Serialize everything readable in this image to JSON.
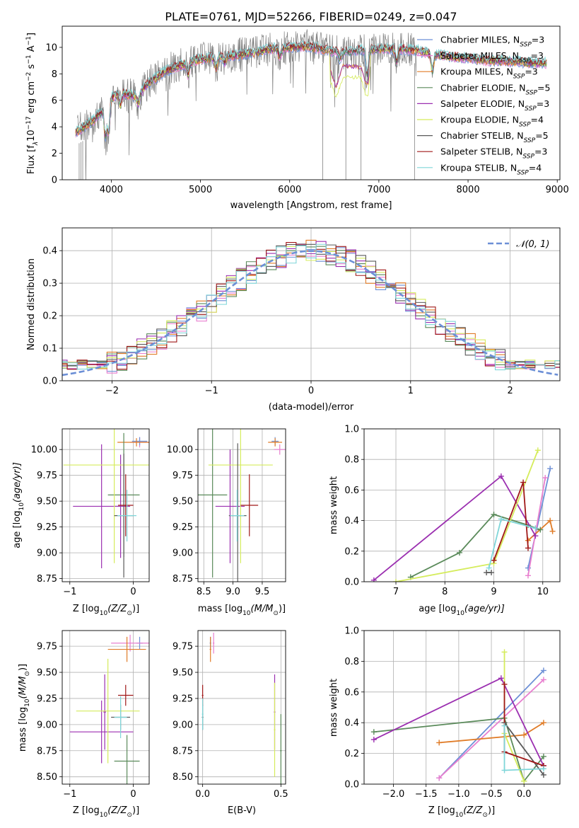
{
  "figure": {
    "title": "PLATE=0761, MJD=52266, FIBERID=0249, z=0.047"
  },
  "colors": [
    "#6c8fd6",
    "#e87fcf",
    "#e07c28",
    "#5a8a5a",
    "#9b2fb0",
    "#d5ec5c",
    "#5a5a5a",
    "#a01818",
    "#7fd6d9"
  ],
  "chart_data": [
    {
      "id": "spectrum",
      "type": "line",
      "xlabel": "wavelength [Angstrom, rest frame]",
      "ylabel_main": "Flux [f",
      "ylabel_sub": "λ",
      "ylabel_rest": "10",
      "ylabel_exp1": "−17",
      "ylabel_mid": " erg cm",
      "ylabel_exp2": "−2",
      "ylabel_mid2": " s",
      "ylabel_exp3": "−1",
      "ylabel_mid3": " A",
      "ylabel_exp4": "−1",
      "ylabel_end": "]",
      "xlim": [
        3450,
        9030
      ],
      "ylim": [
        0,
        11.6
      ],
      "xticks": [
        4000,
        5000,
        6000,
        7000,
        8000,
        9000
      ],
      "yticks": [
        0,
        2,
        4,
        6,
        8,
        10
      ],
      "grid": false,
      "legend_position": "upper-right",
      "legend": [
        {
          "label": "Chabrier MILES, N",
          "sub": "SSP",
          "val": "=3",
          "color": "#6c8fd6"
        },
        {
          "label": "Salpeter MILES, N",
          "sub": "SSP",
          "val": "=3",
          "color": "#e87fcf"
        },
        {
          "label": "Kroupa MILES, N",
          "sub": "SSP",
          "val": "=3",
          "color": "#e07c28"
        },
        {
          "label": "Chabrier ELODIE, N",
          "sub": "SSP",
          "val": "=5",
          "color": "#5a8a5a"
        },
        {
          "label": "Salpeter ELODIE, N",
          "sub": "SSP",
          "val": "=3",
          "color": "#9b2fb0"
        },
        {
          "label": "Kroupa ELODIE, N",
          "sub": "SSP",
          "val": "=4",
          "color": "#d5ec5c"
        },
        {
          "label": "Chabrier STELIB, N",
          "sub": "SSP",
          "val": "=5",
          "color": "#5a5a5a"
        },
        {
          "label": "Salpeter STELIB, N",
          "sub": "SSP",
          "val": "=3",
          "color": "#a01818"
        },
        {
          "label": "Kroupa STELIB, N",
          "sub": "SSP",
          "val": "=4",
          "color": "#7fd6d9"
        }
      ],
      "continuum": [
        [
          3600,
          3.6
        ],
        [
          3700,
          4.0
        ],
        [
          3800,
          4.5
        ],
        [
          3900,
          5.2
        ],
        [
          4000,
          6.2
        ],
        [
          4100,
          6.6
        ],
        [
          4200,
          6.4
        ],
        [
          4300,
          6.3
        ],
        [
          4400,
          7.2
        ],
        [
          4600,
          8.2
        ],
        [
          4800,
          8.7
        ],
        [
          5000,
          9.1
        ],
        [
          5200,
          9.3
        ],
        [
          5400,
          9.4
        ],
        [
          5600,
          9.6
        ],
        [
          5800,
          9.9
        ],
        [
          6000,
          10.0
        ],
        [
          6200,
          10.1
        ],
        [
          6400,
          9.8
        ],
        [
          6600,
          9.6
        ],
        [
          6800,
          9.8
        ],
        [
          7000,
          9.9
        ],
        [
          7200,
          9.9
        ],
        [
          7400,
          9.8
        ],
        [
          7600,
          9.5
        ],
        [
          7800,
          9.3
        ],
        [
          8000,
          9.2
        ],
        [
          8200,
          9.0
        ],
        [
          8400,
          9.0
        ],
        [
          8600,
          8.9
        ],
        [
          8800,
          8.8
        ]
      ],
      "absorption": [
        [
          3934,
          3.0
        ],
        [
          3969,
          3.3
        ],
        [
          4102,
          5.5
        ],
        [
          4304,
          5.6
        ],
        [
          4861,
          7.8
        ],
        [
          5175,
          8.3
        ],
        [
          5270,
          8.8
        ],
        [
          5890,
          9.2
        ],
        [
          6563,
          9.0
        ],
        [
          6870,
          7.6
        ],
        [
          7200,
          8.8
        ],
        [
          7600,
          8.0
        ]
      ],
      "noisy_range": [
        3600,
        7420
      ],
      "trough": [
        [
          6450,
          8.4
        ],
        [
          6520,
          7.0
        ],
        [
          6600,
          8.6
        ],
        [
          6800,
          8.5
        ],
        [
          6850,
          7.3
        ],
        [
          6880,
          7.2
        ],
        [
          6900,
          8.6
        ]
      ]
    },
    {
      "id": "residuals",
      "type": "histogram",
      "xlabel": "(data-model)/error",
      "ylabel": "Normed distribution",
      "xlim": [
        -2.5,
        2.5
      ],
      "ylim": [
        0,
        0.47
      ],
      "xticks": [
        -2,
        -1,
        0,
        1,
        2
      ],
      "xtick_labels": [
        "−2",
        "−1",
        "0",
        "1",
        "2"
      ],
      "yticks": [
        0.0,
        0.1,
        0.2,
        0.3,
        0.4
      ],
      "grid": true,
      "legend_position": "upper-right",
      "legend": [
        {
          "label": "𝒩(0, 1)",
          "color": "#6c8fd6"
        }
      ],
      "bin_width": 0.1
    },
    {
      "id": "age-vs-Z",
      "type": "scatter",
      "xlabel": "Z [log",
      "xlabel_sub": "10",
      "xlabel_rest": "(Z/Z",
      "xlabel_sun": "⊙",
      "xlabel_end": ")]",
      "ylabel": "age  [log",
      "ylabel_sub": "10",
      "ylabel_end": "(age/yr)]",
      "xlim": [
        -1.12,
        0.25
      ],
      "ylim": [
        8.72,
        10.2
      ],
      "xticks": [
        -1,
        0
      ],
      "xtick_labels": [
        "−1",
        "0"
      ],
      "yticks": [
        8.75,
        9.0,
        9.25,
        9.5,
        9.75,
        10.0
      ],
      "grid": true,
      "points": [
        {
          "c": 1,
          "x": 0.1,
          "y": 10.07,
          "ex": 0.15,
          "ey": 0.05
        },
        {
          "c": 0,
          "x": 0.1,
          "y": 10.08,
          "ex": 0.12,
          "ey": 0.04
        },
        {
          "c": 2,
          "x": 0.05,
          "y": 10.07,
          "ex": 0.3,
          "ey": 0.04
        },
        {
          "c": 3,
          "x": -0.15,
          "y": 9.56,
          "ex": 0.25,
          "ey": 0.6
        },
        {
          "c": 4,
          "x": -0.2,
          "y": 9.45,
          "ex": 0.1,
          "ey": 0.5
        },
        {
          "c": 4,
          "x": -0.5,
          "y": 9.45,
          "ex": 0.45,
          "ey": 0.6
        },
        {
          "c": 5,
          "x": -0.3,
          "y": 9.85,
          "ex": 0.8,
          "ey": 0.95
        },
        {
          "c": 6,
          "x": -0.15,
          "y": 9.36,
          "ex": 0.15,
          "ey": 0.6
        },
        {
          "c": 7,
          "x": -0.12,
          "y": 9.46,
          "ex": 0.12,
          "ey": 0.3
        },
        {
          "c": 8,
          "x": -0.1,
          "y": 9.36,
          "ex": 0.15,
          "ey": 0.25
        }
      ]
    },
    {
      "id": "age-vs-mass",
      "type": "scatter",
      "xlabel": "mass [log",
      "xlabel_sub": "10",
      "xlabel_rest": "(M/M",
      "xlabel_sun": "⊙",
      "xlabel_end": ")]",
      "xlim": [
        8.4,
        9.9
      ],
      "ylim": [
        8.72,
        10.2
      ],
      "xticks": [
        8.5,
        9.0,
        9.5
      ],
      "xtick_labels": [
        "8.5",
        "9.0",
        "9.5"
      ],
      "yticks": [
        8.75,
        9.0,
        9.25,
        9.5,
        9.75,
        10.0
      ],
      "grid": true,
      "points": [
        {
          "c": 0,
          "x": 9.72,
          "y": 10.08,
          "ex": 0.06,
          "ey": 0.04
        },
        {
          "c": 1,
          "x": 9.8,
          "y": 10.0,
          "ex": 0.1,
          "ey": 0.05
        },
        {
          "c": 2,
          "x": 9.72,
          "y": 10.07,
          "ex": 0.12,
          "ey": 0.04
        },
        {
          "c": 3,
          "x": 8.65,
          "y": 9.56,
          "ex": 0.25,
          "ey": 0.8
        },
        {
          "c": 4,
          "x": 8.95,
          "y": 9.45,
          "ex": 0.25,
          "ey": 0.55
        },
        {
          "c": 5,
          "x": 9.13,
          "y": 9.85,
          "ex": 0.55,
          "ey": 0.95
        },
        {
          "c": 6,
          "x": 9.08,
          "y": 9.36,
          "ex": 0.15,
          "ey": 0.7
        },
        {
          "c": 7,
          "x": 9.28,
          "y": 9.46,
          "ex": 0.15,
          "ey": 0.3
        },
        {
          "c": 8,
          "x": 9.07,
          "y": 9.36,
          "ex": 0.12,
          "ey": 0.25
        }
      ]
    },
    {
      "id": "weight-vs-age",
      "type": "line",
      "xlabel": "age  [log",
      "xlabel_sub": "10",
      "xlabel_end": "(age/yr)]",
      "ylabel": "mass weight",
      "xlim": [
        6.35,
        10.35
      ],
      "ylim": [
        0,
        1.0
      ],
      "xticks": [
        7,
        8,
        9,
        10
      ],
      "yticks": [
        0.0,
        0.2,
        0.4,
        0.6,
        0.8,
        1.0
      ],
      "grid": true,
      "series": [
        {
          "c": 0,
          "x": [
            9.7,
            10.15
          ],
          "y": [
            0.09,
            0.74
          ]
        },
        {
          "c": 1,
          "x": [
            9.7,
            10.05
          ],
          "y": [
            0.04,
            0.68
          ]
        },
        {
          "c": 2,
          "x": [
            9.7,
            10.15,
            10.2
          ],
          "y": [
            0.27,
            0.4,
            0.33
          ]
        },
        {
          "c": 3,
          "x": [
            7.3,
            8.3,
            9.0,
            9.7,
            9.95
          ],
          "y": [
            0.03,
            0.19,
            0.44,
            0.37,
            0.34
          ]
        },
        {
          "c": 4,
          "x": [
            6.55,
            9.15,
            9.85
          ],
          "y": [
            0.01,
            0.69,
            0.3
          ]
        },
        {
          "c": 5,
          "x": [
            7.0,
            9.0,
            9.9
          ],
          "y": [
            0.0,
            0.12,
            0.86
          ]
        },
        {
          "c": 6,
          "x": [
            8.85,
            8.95
          ],
          "y": [
            0.06,
            0.06
          ]
        },
        {
          "c": 7,
          "x": [
            9.0,
            9.6,
            9.7
          ],
          "y": [
            0.14,
            0.65,
            0.22
          ]
        },
        {
          "c": 8,
          "x": [
            8.9,
            9.15,
            9.85
          ],
          "y": [
            0.09,
            0.41,
            0.35
          ]
        }
      ]
    },
    {
      "id": "mass-vs-Z",
      "type": "scatter",
      "xlabel": "Z [log",
      "xlabel_sub": "10",
      "xlabel_rest": "(Z/Z",
      "xlabel_sun": "⊙",
      "xlabel_end": ")]",
      "ylabel": "mass [log",
      "ylabel_sub": "10",
      "ylabel_rest": "(M/M",
      "ylabel_sun": "⊙",
      "ylabel_end": ")]",
      "xlim": [
        -1.12,
        0.25
      ],
      "ylim": [
        8.43,
        9.9
      ],
      "xticks": [
        -1,
        0
      ],
      "xtick_labels": [
        "−1",
        "0"
      ],
      "yticks": [
        8.5,
        8.75,
        9.0,
        9.25,
        9.5,
        9.75
      ],
      "grid": true,
      "points": [
        {
          "c": 0,
          "x": 0.1,
          "y": 9.78,
          "ex": 0.05,
          "ey": 0.06
        },
        {
          "c": 1,
          "x": -0.05,
          "y": 9.78,
          "ex": 0.3,
          "ey": 0.08
        },
        {
          "c": 2,
          "x": -0.1,
          "y": 9.72,
          "ex": 0.3,
          "ey": 0.12
        },
        {
          "c": 3,
          "x": -0.1,
          "y": 8.65,
          "ex": 0.2,
          "ey": 0.25
        },
        {
          "c": 4,
          "x": -0.5,
          "y": 8.93,
          "ex": 0.5,
          "ey": 0.3
        },
        {
          "c": 4,
          "x": -0.45,
          "y": 9.12,
          "ex": 0.02,
          "ey": 0.36
        },
        {
          "c": 5,
          "x": -0.4,
          "y": 9.13,
          "ex": 0.5,
          "ey": 0.5
        },
        {
          "c": 6,
          "x": -0.2,
          "y": 9.07,
          "ex": 0.15,
          "ey": 0.12
        },
        {
          "c": 7,
          "x": -0.12,
          "y": 9.28,
          "ex": 0.12,
          "ey": 0.1
        },
        {
          "c": 8,
          "x": -0.2,
          "y": 9.07,
          "ex": 0.1,
          "ey": 0.2
        }
      ]
    },
    {
      "id": "mass-vs-EBV",
      "type": "scatter",
      "xlabel": "E(B-V)",
      "xlim": [
        -0.03,
        0.53
      ],
      "ylim": [
        8.43,
        9.9
      ],
      "xticks": [
        0.0,
        0.5
      ],
      "xtick_labels": [
        "0.0",
        "0.5"
      ],
      "yticks": [
        8.5,
        8.75,
        9.0,
        9.25,
        9.5,
        9.75
      ],
      "grid": true,
      "points": [
        {
          "c": 0,
          "x": 0.05,
          "y": 9.78,
          "ex": 0.005,
          "ey": 0.06
        },
        {
          "c": 1,
          "x": 0.07,
          "y": 9.78,
          "ex": 0.005,
          "ey": 0.1
        },
        {
          "c": 2,
          "x": 0.05,
          "y": 9.72,
          "ex": 0.005,
          "ey": 0.12
        },
        {
          "c": 3,
          "x": 0.5,
          "y": 8.75,
          "ex": 0.005,
          "ey": 0.35
        },
        {
          "c": 4,
          "x": 0.46,
          "y": 9.12,
          "ex": 0.005,
          "ey": 0.36
        },
        {
          "c": 5,
          "x": 0.46,
          "y": 8.95,
          "ex": 0.005,
          "ey": 0.45
        },
        {
          "c": 6,
          "x": 0.0,
          "y": 9.07,
          "ex": 0.005,
          "ey": 0.12
        },
        {
          "c": 7,
          "x": 0.0,
          "y": 9.28,
          "ex": 0.005,
          "ey": 0.1
        },
        {
          "c": 8,
          "x": 0.0,
          "y": 9.1,
          "ex": 0.005,
          "ey": 0.15
        }
      ]
    },
    {
      "id": "weight-vs-Z",
      "type": "line",
      "xlabel": "Z [log",
      "xlabel_sub": "10",
      "xlabel_rest": "(Z/Z",
      "xlabel_sun": "⊙",
      "xlabel_end": ")]",
      "ylabel": "mass weight",
      "xlim": [
        -2.45,
        0.55
      ],
      "ylim": [
        0,
        1.0
      ],
      "xticks": [
        -2.0,
        -1.5,
        -1.0,
        -0.5,
        0.0
      ],
      "xtick_labels": [
        "−2.0",
        "−1.5",
        "−1.0",
        "−0.5",
        "0.0"
      ],
      "yticks": [
        0.0,
        0.2,
        0.4,
        0.6,
        0.8,
        1.0
      ],
      "grid": true,
      "series": [
        {
          "c": 0,
          "x": [
            -1.3,
            0.3
          ],
          "y": [
            0.04,
            0.74
          ]
        },
        {
          "c": 1,
          "x": [
            -1.3,
            0.3
          ],
          "y": [
            0.04,
            0.68
          ]
        },
        {
          "c": 2,
          "x": [
            -1.3,
            0.0,
            0.3
          ],
          "y": [
            0.27,
            0.32,
            0.4
          ]
        },
        {
          "c": 3,
          "x": [
            -2.3,
            -0.3,
            0.0,
            0.3
          ],
          "y": [
            0.34,
            0.43,
            0.02,
            0.18
          ]
        },
        {
          "c": 4,
          "x": [
            -2.3,
            -0.35,
            0.3
          ],
          "y": [
            0.29,
            0.69,
            0.12
          ]
        },
        {
          "c": 5,
          "x": [
            -0.3,
            -0.3,
            0.0
          ],
          "y": [
            0.86,
            0.33,
            0.02
          ]
        },
        {
          "c": 6,
          "x": [
            -0.3,
            0.3
          ],
          "y": [
            0.4,
            0.06
          ]
        },
        {
          "c": 7,
          "x": [
            -0.3,
            -0.3,
            0.3
          ],
          "y": [
            0.65,
            0.21,
            0.12
          ]
        },
        {
          "c": 8,
          "x": [
            -0.3,
            -0.3,
            0.3
          ],
          "y": [
            0.38,
            0.09,
            0.1
          ]
        }
      ]
    }
  ]
}
